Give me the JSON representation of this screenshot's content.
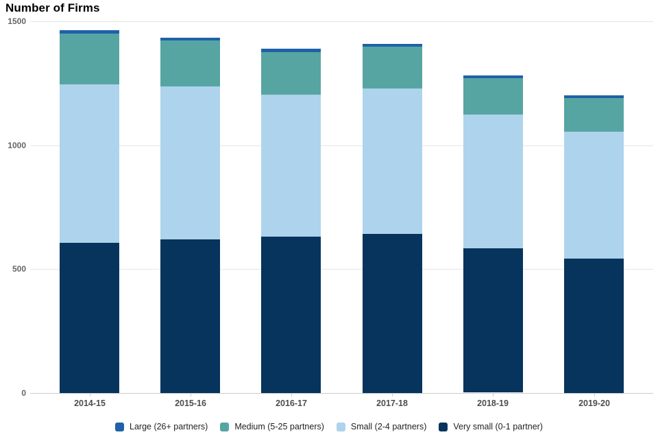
{
  "chart_data": {
    "type": "bar",
    "stacked": true,
    "title": "Number of Firms",
    "categories": [
      "2014-15",
      "2015-16",
      "2016-17",
      "2017-18",
      "2018-19",
      "2019-20"
    ],
    "series": [
      {
        "name": "Large (26+ partners)",
        "color": "#1f61a9",
        "values": [
          13,
          12,
          15,
          12,
          12,
          11
        ]
      },
      {
        "name": "Medium (5-25 partners)",
        "color": "#57a5a2",
        "values": [
          205,
          186,
          172,
          168,
          147,
          136
        ]
      },
      {
        "name": "Small (2-4 partners)",
        "color": "#aed3ec",
        "values": [
          640,
          616,
          572,
          586,
          540,
          512
        ]
      },
      {
        "name": "Very small (0-1 partner)",
        "color": "#06345c",
        "values": [
          605,
          620,
          631,
          642,
          581,
          542
        ]
      }
    ],
    "totals": [
      1463,
      1434,
      1390,
      1408,
      1280,
      1201
    ],
    "xlabel": "",
    "ylabel": "",
    "ylim": [
      0,
      1500
    ],
    "yticks": [
      0,
      500,
      1000,
      1500
    ],
    "grid": true,
    "legend_position": "bottom"
  }
}
